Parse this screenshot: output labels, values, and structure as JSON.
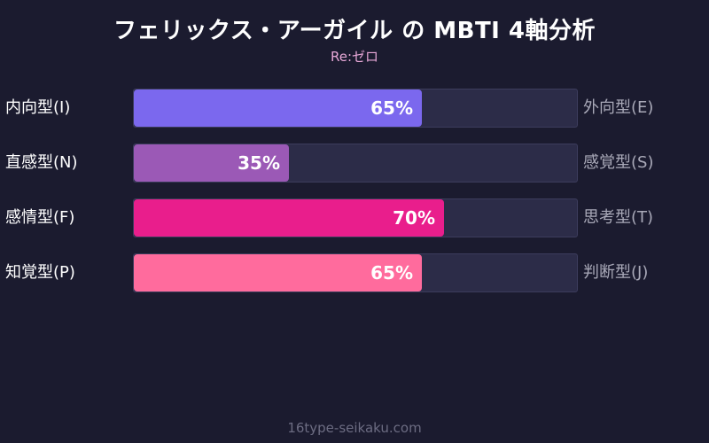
{
  "title": "フェリックス・アーガイル の MBTI 4軸分析",
  "subtitle": "Re:ゼロ",
  "footer": "16type-seikaku.com",
  "chart_data": {
    "type": "bar",
    "orientation": "horizontal",
    "value_range": [
      0,
      100
    ],
    "rows": [
      {
        "left_label": "内向型(I)",
        "right_label": "外向型(E)",
        "value": 65,
        "value_label": "65%",
        "color": "#7b68ee"
      },
      {
        "left_label": "直感型(N)",
        "right_label": "感覚型(S)",
        "value": 35,
        "value_label": "35%",
        "color": "#9b59b6"
      },
      {
        "left_label": "感情型(F)",
        "right_label": "思考型(T)",
        "value": 70,
        "value_label": "70%",
        "color": "#e91e8c"
      },
      {
        "left_label": "知覚型(P)",
        "right_label": "判断型(J)",
        "value": 65,
        "value_label": "65%",
        "color": "#ff6b9d"
      }
    ]
  }
}
